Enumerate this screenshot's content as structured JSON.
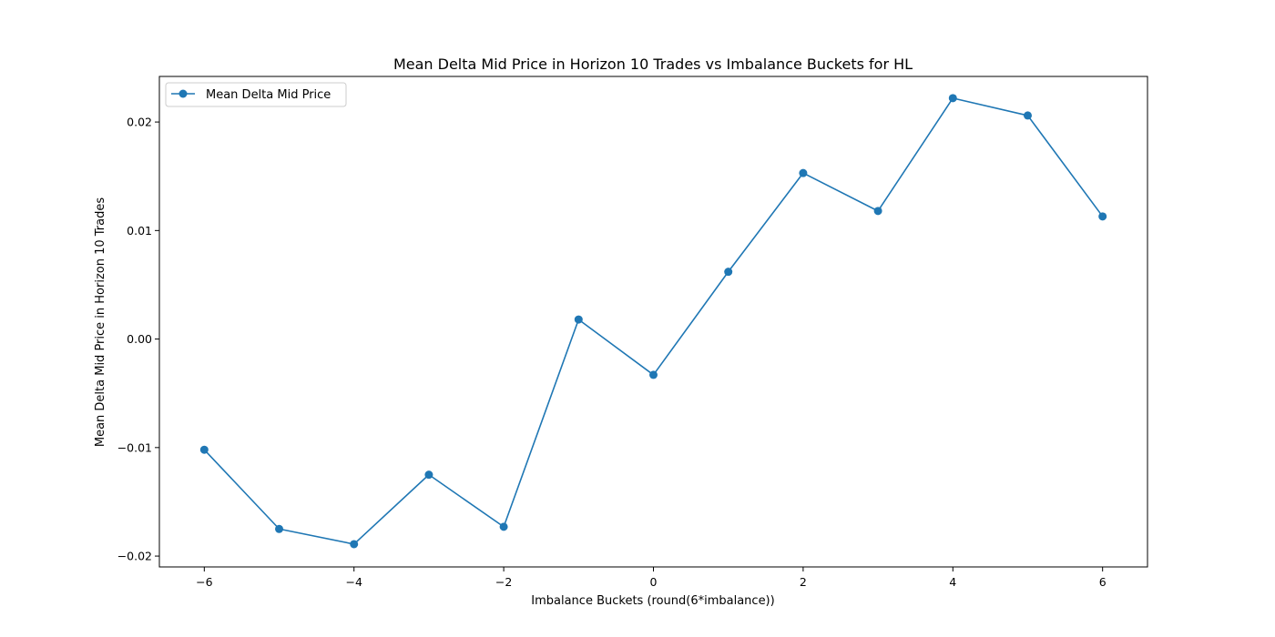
{
  "chart_data": {
    "type": "line",
    "title": "Mean Delta Mid Price in Horizon 10 Trades vs Imbalance Buckets for HL",
    "xlabel": "Imbalance Buckets (round(6*imbalance))",
    "ylabel": "Mean Delta Mid Price in Horizon 10 Trades",
    "xlim": [
      -6.6,
      6.6
    ],
    "ylim": [
      -0.021,
      0.0242
    ],
    "x_ticks": [
      -6,
      -4,
      -2,
      0,
      2,
      4,
      6
    ],
    "x_tick_labels": [
      "−6",
      "−4",
      "−2",
      "0",
      "2",
      "4",
      "6"
    ],
    "y_ticks": [
      -0.02,
      -0.01,
      0.0,
      0.01,
      0.02
    ],
    "y_tick_labels": [
      "−0.02",
      "−0.01",
      "0.00",
      "0.01",
      "0.02"
    ],
    "grid": false,
    "legend_position": "upper-left",
    "color": "#1f77b4",
    "series": [
      {
        "name": "Mean Delta Mid Price",
        "x": [
          -6,
          -5,
          -4,
          -3,
          -2,
          -1,
          0,
          1,
          2,
          3,
          4,
          5,
          6
        ],
        "y": [
          -0.0102,
          -0.0175,
          -0.0189,
          -0.0125,
          -0.0173,
          0.0018,
          -0.0033,
          0.0062,
          0.0153,
          0.0118,
          0.0222,
          0.0206,
          0.0113
        ]
      }
    ]
  }
}
